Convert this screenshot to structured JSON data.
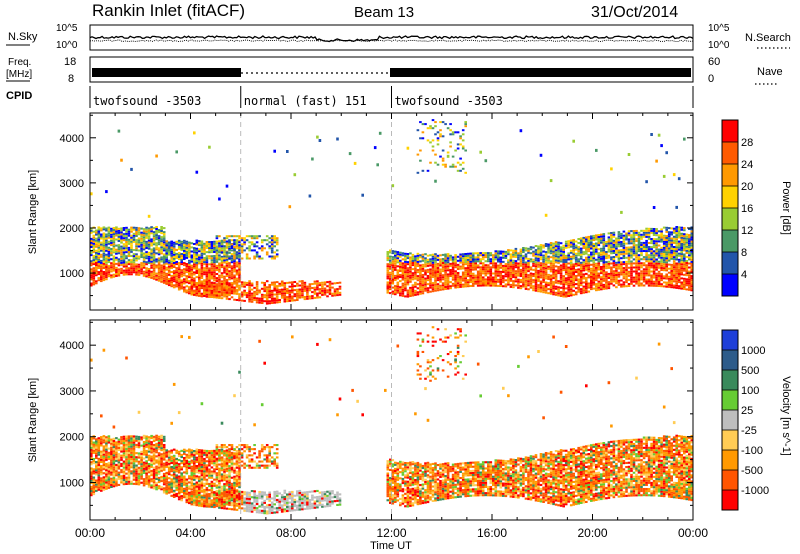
{
  "header": {
    "station": "Rankin Inlet (fitACF)",
    "beam": "Beam 13",
    "date": "31/Oct/2014"
  },
  "noise_panel": {
    "left_label": "N.Sky",
    "right_label": "N.Search",
    "left_ticks": [
      "10^5",
      "10^0"
    ],
    "right_ticks": [
      "10^5",
      "10^0"
    ]
  },
  "freq_panel": {
    "left_label_line1": "Freq.",
    "left_label_line2": "[MHz]",
    "right_label": "Nave",
    "left_ticks": [
      "18",
      "8"
    ],
    "right_ticks": [
      "60",
      "0"
    ]
  },
  "cpid_panel": {
    "label": "CPID",
    "segments": [
      {
        "start_hour": 0,
        "end_hour": 6,
        "text": "twofsound -3503"
      },
      {
        "start_hour": 6,
        "end_hour": 12,
        "text": "normal (fast) 151"
      },
      {
        "start_hour": 12,
        "end_hour": 24,
        "text": "twofsound -3503"
      }
    ]
  },
  "x_axis": {
    "label": "Time UT",
    "ticks": [
      "00:00",
      "04:00",
      "08:00",
      "12:00",
      "16:00",
      "20:00",
      "00:00"
    ],
    "tick_hours": [
      0,
      4,
      8,
      12,
      16,
      20,
      24
    ]
  },
  "chart_data": [
    {
      "type": "heatmap",
      "ylabel": "Slant Range [km]",
      "yticks": [
        1000,
        2000,
        3000,
        4000
      ],
      "ylim": [
        180,
        4550
      ],
      "xlim": [
        0,
        24
      ],
      "colorbar": {
        "label": "Power [dB]",
        "ticks": [
          "28",
          "24",
          "20",
          "16",
          "12",
          "8",
          "4"
        ],
        "colors": [
          "#ff0000",
          "#ff5a00",
          "#ff9900",
          "#ffd200",
          "#99cc33",
          "#4a9966",
          "#2255aa",
          "#0000ff"
        ]
      }
    },
    {
      "type": "heatmap",
      "ylabel": "Slant Range [km]",
      "yticks": [
        1000,
        2000,
        3000,
        4000
      ],
      "ylim": [
        180,
        4550
      ],
      "xlim": [
        0,
        24
      ],
      "colorbar": {
        "label": "Velocity [m s^-1]",
        "ticks": [
          "1000",
          "500",
          "100",
          "25",
          "-25",
          "-100",
          "-500",
          "-1000"
        ],
        "colors": [
          "#1e3fd9",
          "#2e5c8a",
          "#3a8a5c",
          "#66cc33",
          "#bebebe",
          "#ffcc55",
          "#ff9900",
          "#ff5500",
          "#ff0000"
        ]
      }
    }
  ]
}
